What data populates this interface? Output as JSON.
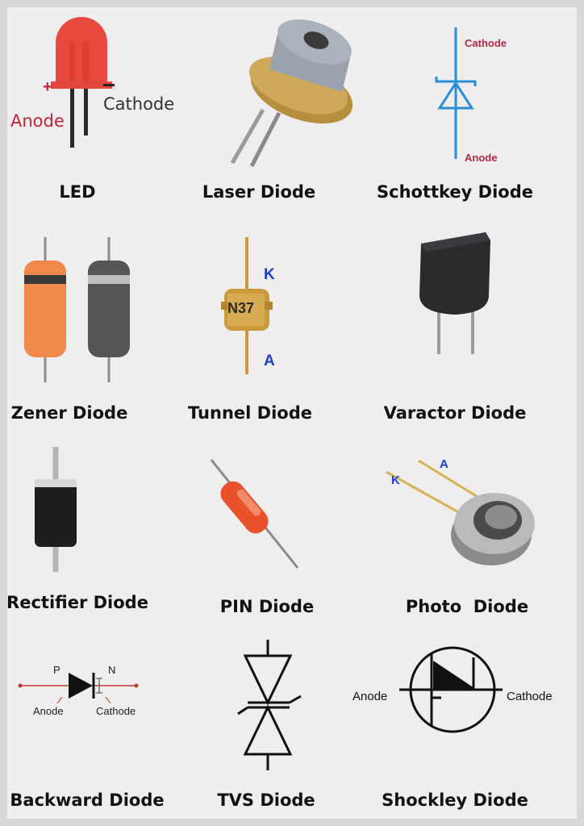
{
  "items": [
    {
      "caption": "LED",
      "labels": {
        "anode": "Anode",
        "cathode": "Cathode",
        "plus": "+",
        "minus": "−"
      }
    },
    {
      "caption": "Laser Diode"
    },
    {
      "caption": "Schottkey Diode",
      "labels": {
        "cathode": "Cathode",
        "anode": "Anode"
      }
    },
    {
      "caption": "Zener Diode"
    },
    {
      "caption": "Tunnel Diode",
      "labels": {
        "k": "K",
        "a": "A",
        "marking": "N37"
      }
    },
    {
      "caption": "Varactor Diode"
    },
    {
      "caption": "Rectifier Diode"
    },
    {
      "caption": "PIN Diode"
    },
    {
      "caption": "Photo  Diode",
      "labels": {
        "k": "K",
        "a": "A"
      }
    },
    {
      "caption": "Backward Diode",
      "labels": {
        "p": "P",
        "n": "N",
        "anode": "Anode",
        "cathode": "Cathode"
      }
    },
    {
      "caption": "TVS Diode"
    },
    {
      "caption": "Shockley Diode",
      "labels": {
        "anode": "Anode",
        "cathode": "Cathode"
      }
    }
  ],
  "colors": {
    "background": "#efedee",
    "frame": "#d7d7d7",
    "caption": "#111111",
    "led_red": "#e8493f",
    "led_label": "#c3243a",
    "schottky_blue": "#2a8fd8",
    "schottky_label": "#b12a45",
    "zener_orange": "#f08a4b",
    "tunnel_gold": "#c99a3c",
    "kA_blue": "#1b3fd1",
    "backward_red": "#c0392b"
  },
  "icons": [
    "led-component-icon",
    "laser-diode-icon",
    "schottky-symbol-icon",
    "zener-diode-icon",
    "tunnel-diode-icon",
    "varactor-diode-icon",
    "rectifier-diode-icon",
    "pin-diode-icon",
    "photo-diode-icon",
    "backward-diode-symbol-icon",
    "tvs-diode-symbol-icon",
    "shockley-diode-symbol-icon"
  ]
}
